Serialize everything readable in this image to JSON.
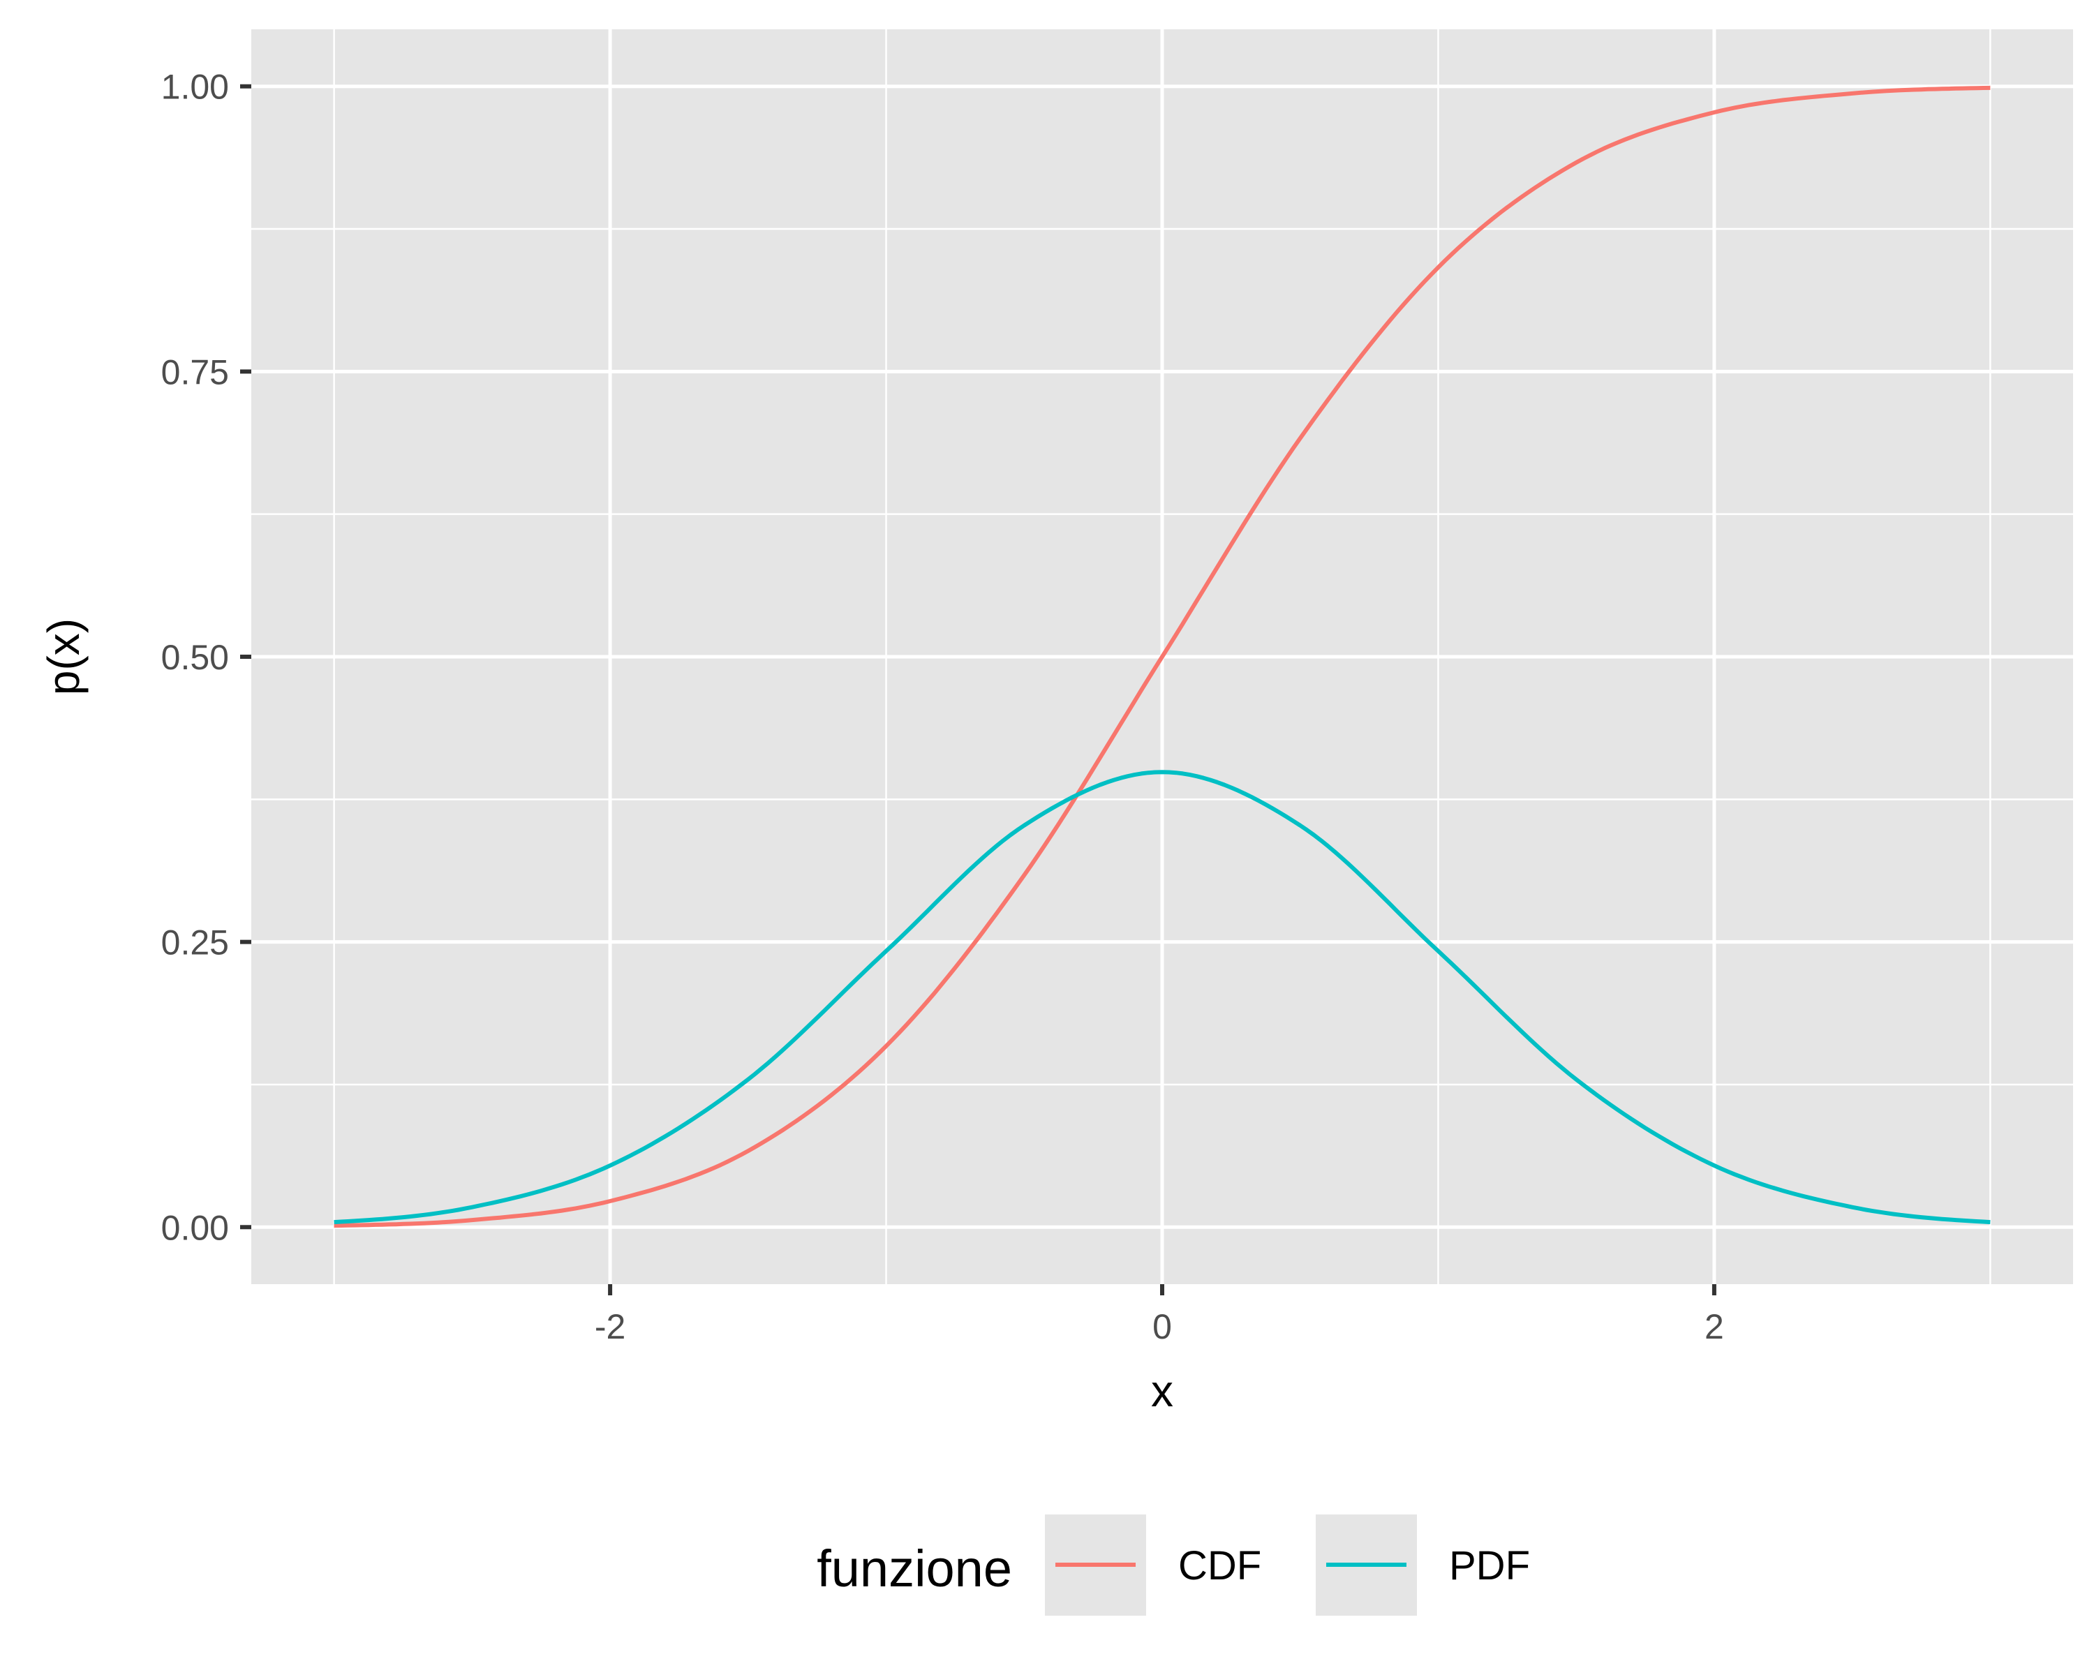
{
  "chart_data": {
    "type": "line",
    "xlabel": "x",
    "ylabel": "p(x)",
    "xlim": [
      -3.3,
      3.3
    ],
    "ylim": [
      -0.05,
      1.05
    ],
    "x_ticks": [
      -2,
      0,
      2
    ],
    "x_tick_labels": [
      "-2",
      "0",
      "2"
    ],
    "y_ticks": [
      0,
      0.25,
      0.5,
      0.75,
      1.0
    ],
    "y_tick_labels": [
      "0.00",
      "0.25",
      "0.50",
      "0.75",
      "1.00"
    ],
    "grid": true,
    "legend": {
      "title": "funzione",
      "position": "bottom"
    },
    "x": [
      -3.0,
      -2.5,
      -2.0,
      -1.5,
      -1.0,
      -0.5,
      0.0,
      0.5,
      1.0,
      1.5,
      2.0,
      2.5,
      3.0
    ],
    "series": [
      {
        "name": "CDF",
        "color": "#F8766D",
        "values": [
          0.0013,
          0.0062,
          0.0228,
          0.0668,
          0.1587,
          0.3085,
          0.5,
          0.6915,
          0.8413,
          0.9332,
          0.9772,
          0.9938,
          0.9987
        ]
      },
      {
        "name": "PDF",
        "color": "#00BFC4",
        "values": [
          0.0044,
          0.0175,
          0.054,
          0.1295,
          0.242,
          0.3521,
          0.3989,
          0.3521,
          0.242,
          0.1295,
          0.054,
          0.0175,
          0.0044
        ]
      }
    ]
  },
  "colors": {
    "panel_background": "#E5E5E5",
    "grid": "#FFFFFF",
    "tick_text": "#4D4D4D",
    "tick_mark": "#333333"
  }
}
